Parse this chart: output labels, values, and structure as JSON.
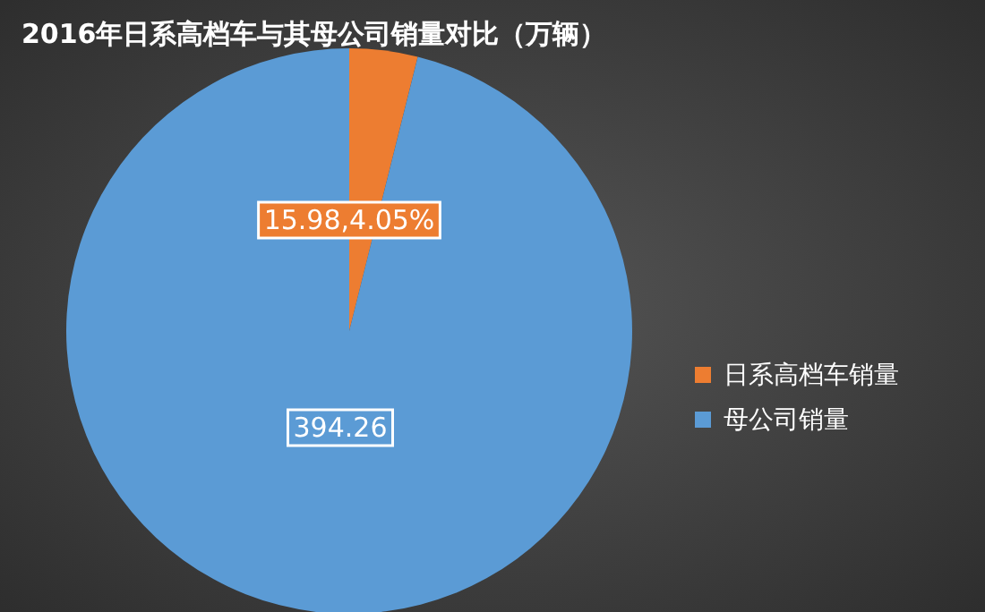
{
  "chart_data": {
    "type": "pie",
    "title": "2016年日系高档车与其母公司销量对比（万辆）",
    "categories": [
      "日系高档车销量",
      "母公司销量"
    ],
    "values": [
      15.98,
      394.26
    ],
    "colors": [
      "#ed7d31",
      "#5b9bd5"
    ],
    "value_labels": [
      "15.98,4.05%",
      "394.26"
    ],
    "legend": "right"
  }
}
